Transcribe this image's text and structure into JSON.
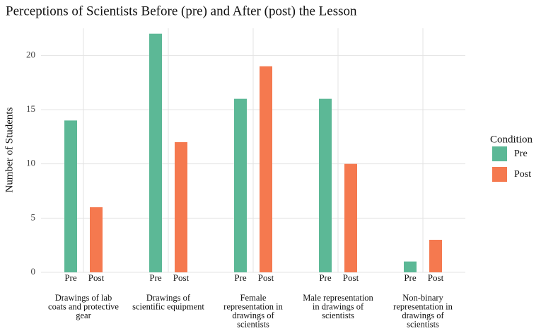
{
  "chart_data": {
    "type": "bar",
    "title": "Perceptions of Scientists Before (pre) and After (post) the Lesson",
    "y_label": "Number of Students",
    "legend_title": "Condition",
    "categories": [
      "Drawings of lab\ncoats and protective\ngear",
      "Drawings of\nscientific equipment",
      "Female\nrepresentation in\ndrawings of\nscientists",
      "Male representation\nin drawings of\nscientists",
      "Non-binary\nrepresentation in\ndrawings of\nscientists"
    ],
    "series": [
      {
        "name": "Pre",
        "color": "#5cb896",
        "values": [
          14,
          22,
          16,
          16,
          1
        ]
      },
      {
        "name": "Post",
        "color": "#f5794f",
        "values": [
          6,
          12,
          19,
          10,
          3
        ]
      }
    ],
    "ylim": [
      0,
      22.5
    ],
    "yticks": [
      0,
      5,
      10,
      15,
      20
    ],
    "grid": true,
    "legend": "right"
  }
}
